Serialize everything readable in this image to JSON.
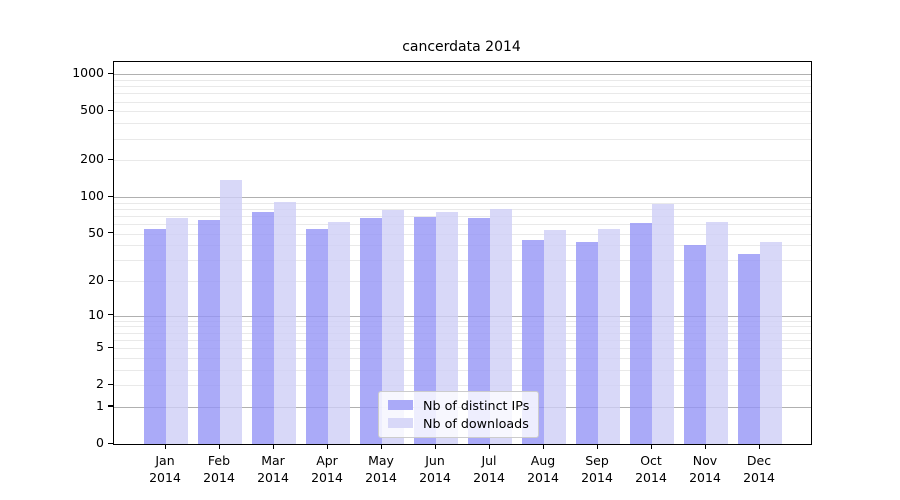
{
  "title": "cancerdata 2014",
  "legend": {
    "items": [
      {
        "label": "Nb of distinct IPs",
        "color": "#aaaaf8"
      },
      {
        "label": "Nb of downloads",
        "color": "#d8d8f8"
      }
    ]
  },
  "axes": {
    "y_tick_labels": [
      "0",
      "1",
      "2",
      "5",
      "10",
      "20",
      "50",
      "100",
      "200",
      "500",
      "1000"
    ],
    "x_tick_months": [
      "Jan",
      "Feb",
      "Mar",
      "Apr",
      "May",
      "Jun",
      "Jul",
      "Aug",
      "Sep",
      "Oct",
      "Nov",
      "Dec"
    ],
    "x_tick_year": "2014"
  },
  "chart_data": {
    "type": "bar",
    "title": "cancerdata 2014",
    "categories": [
      "Jan 2014",
      "Feb 2014",
      "Mar 2014",
      "Apr 2014",
      "May 2014",
      "Jun 2014",
      "Jul 2014",
      "Aug 2014",
      "Sep 2014",
      "Oct 2014",
      "Nov 2014",
      "Dec 2014"
    ],
    "series": [
      {
        "name": "Nb of distinct IPs",
        "color": "#aaaaf8",
        "values": [
          55,
          65,
          75,
          55,
          67,
          69,
          67,
          44,
          43,
          61,
          40,
          34
        ]
      },
      {
        "name": "Nb of downloads",
        "color": "#d8d8f8",
        "values": [
          67,
          138,
          91,
          62,
          78,
          75,
          80,
          54,
          55,
          88,
          62,
          43
        ]
      }
    ],
    "xlabel": "",
    "ylabel": "",
    "yscale": "log1p",
    "y_ticks": [
      0,
      1,
      2,
      5,
      10,
      20,
      50,
      100,
      200,
      500,
      1000
    ],
    "y_minor_gridlines": [
      2,
      3,
      4,
      5,
      6,
      7,
      8,
      9,
      20,
      30,
      40,
      50,
      60,
      70,
      80,
      90,
      200,
      300,
      400,
      500,
      600,
      700,
      800,
      900
    ],
    "y_major_gridlines": [
      1,
      10,
      100,
      1000
    ],
    "ylim": [
      0,
      1260
    ],
    "grid": true,
    "legend_position": "lower center"
  }
}
